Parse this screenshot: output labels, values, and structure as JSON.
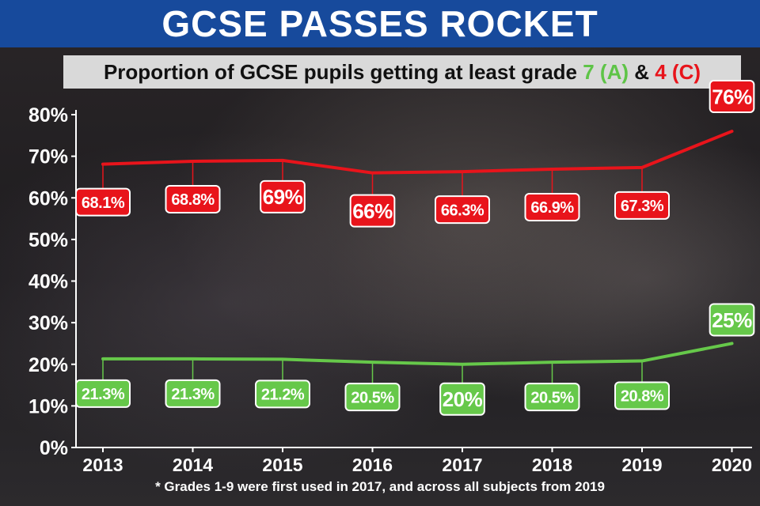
{
  "title": "GCSE PASSES ROCKET",
  "subtitle": {
    "prefix": "Proportion of GCSE pupils getting at least grade ",
    "grade7": "7 (A)",
    "joiner": " & ",
    "grade4": "4 (C)"
  },
  "footnote": "* Grades 1-9 were first used in 2017, and across all subjects from 2019",
  "colors": {
    "title_bg": "#174a9c",
    "red_series": "#e8141b",
    "green_series": "#66c84a",
    "axis": "#ffffff"
  },
  "chart_data": {
    "type": "line",
    "x": [
      "2013",
      "2014",
      "2015",
      "2016",
      "2017",
      "2018",
      "2019",
      "2020"
    ],
    "ylim": [
      0,
      80
    ],
    "yticks": [
      "0%",
      "10%",
      "20%",
      "30%",
      "40%",
      "50%",
      "60%",
      "70%",
      "80%"
    ],
    "grid": false,
    "series": [
      {
        "name": "4 (C)",
        "color": "#e8141b",
        "values": [
          68.1,
          68.8,
          69,
          66,
          66.3,
          66.9,
          67.3,
          76
        ],
        "labels": [
          "68.1%",
          "68.8%",
          "69%",
          "66%",
          "66.3%",
          "66.9%",
          "67.3%",
          "76%"
        ]
      },
      {
        "name": "7 (A)",
        "color": "#66c84a",
        "values": [
          21.3,
          21.3,
          21.2,
          20.5,
          20,
          20.5,
          20.8,
          25
        ],
        "labels": [
          "21.3%",
          "21.3%",
          "21.2%",
          "20.5%",
          "20%",
          "20.5%",
          "20.8%",
          "25%"
        ]
      }
    ]
  }
}
